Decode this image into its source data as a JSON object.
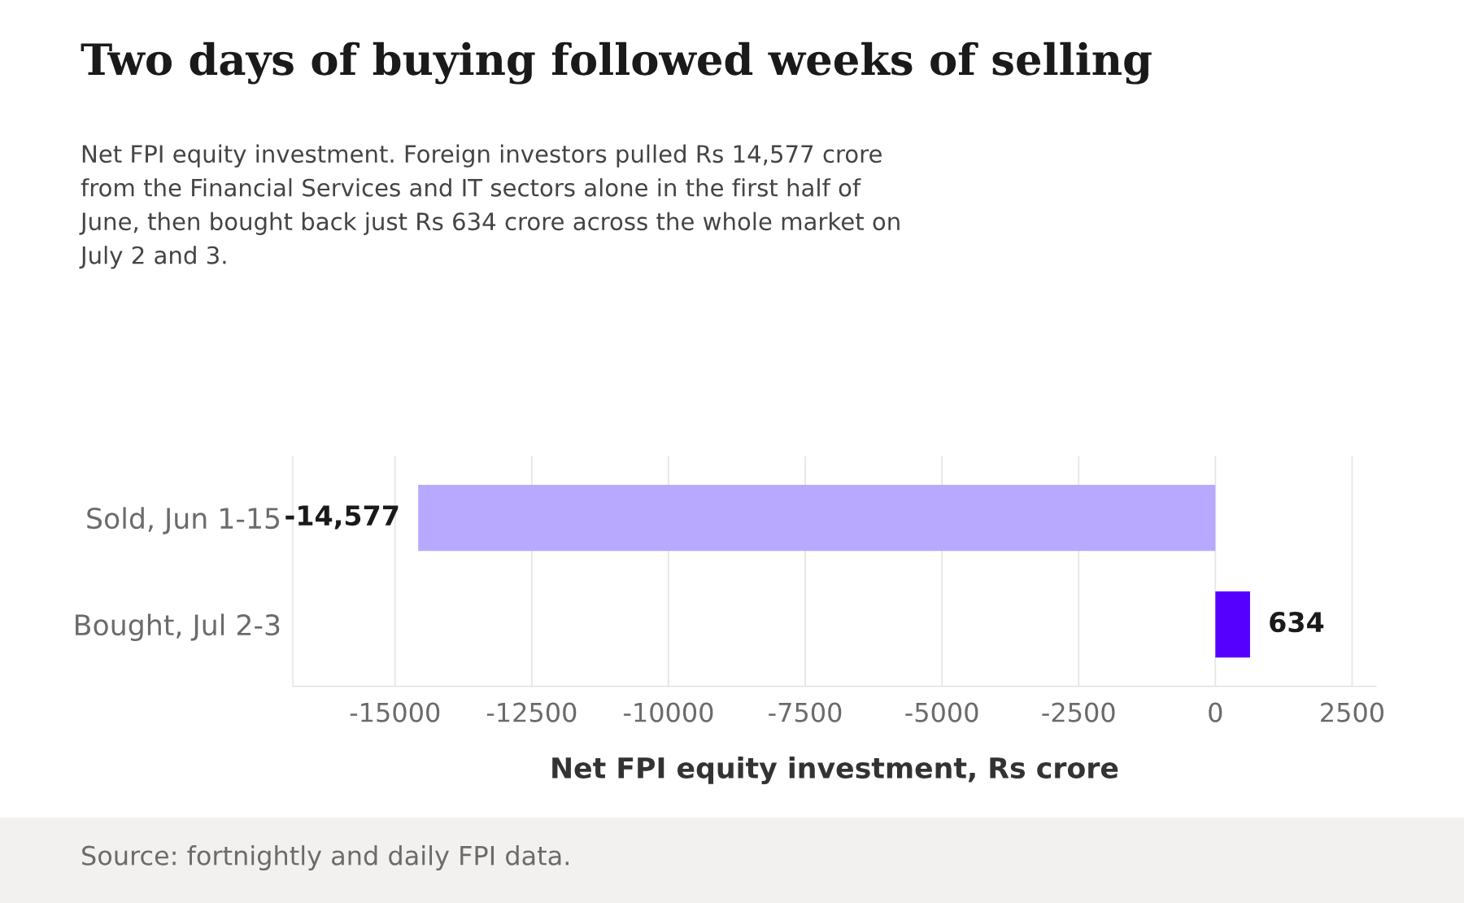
{
  "chart_data": {
    "type": "bar",
    "orientation": "horizontal",
    "title": "Two days of buying followed weeks of selling",
    "subtitle": "Net FPI equity investment. Foreign investors pulled Rs 14,577 crore\nfrom the Financial Services and IT sectors alone in the first half of\nJune, then bought back just Rs 634 crore across the whole market on\nJuly 2 and 3.",
    "xlabel": "Net FPI equity investment, Rs crore",
    "categories": [
      "Sold, Jun 1-15",
      "Bought, Jul 2-3"
    ],
    "values": [
      -14577,
      634
    ],
    "colors": [
      "#b8a9ff",
      "#5500ff"
    ],
    "value_labels": [
      "-14,577",
      "634"
    ],
    "xlim": [
      -16870,
      2940
    ],
    "xticks": [
      -15000,
      -12500,
      -10000,
      -7500,
      -5000,
      -2500,
      0,
      2500
    ],
    "grid": "x",
    "annotations": [
      "Source: fortnightly and daily FPI data."
    ]
  }
}
